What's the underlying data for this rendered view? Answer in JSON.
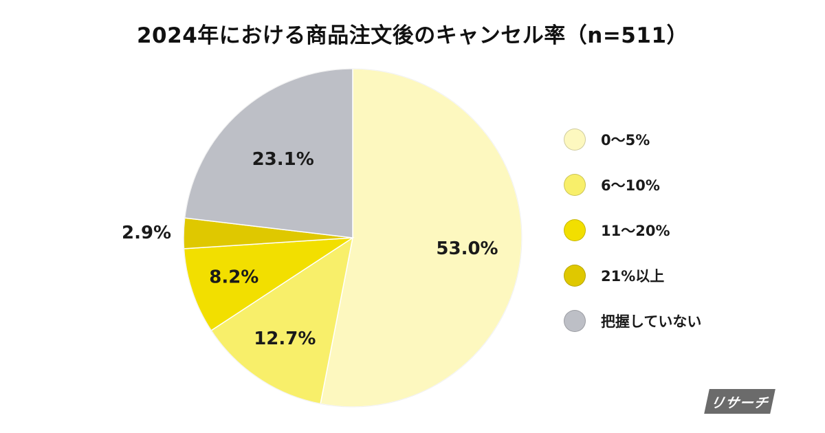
{
  "chart_data": {
    "type": "pie",
    "title": "2024年における商品注文後のキャンセル率（n=511）",
    "slices": [
      {
        "label": "0〜5%",
        "value": 53.0,
        "display": "53.0%",
        "color": "#fdf8bf"
      },
      {
        "label": "6〜10%",
        "value": 12.7,
        "display": "12.7%",
        "color": "#f8ef6a"
      },
      {
        "label": "11〜20%",
        "value": 8.2,
        "display": "8.2%",
        "color": "#f2df00"
      },
      {
        "label": "21%以上",
        "value": 2.9,
        "display": "2.9%",
        "color": "#dfc800"
      },
      {
        "label": "把握していない",
        "value": 23.1,
        "display": "23.1%",
        "color": "#bdbfc6"
      }
    ],
    "legend_position": "right"
  },
  "logo": {
    "text": "リサーチ"
  }
}
